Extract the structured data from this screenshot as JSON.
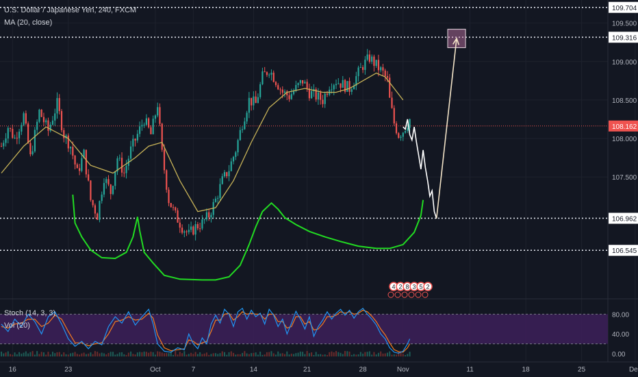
{
  "header": {
    "symbol_line": "U.S. Dollar / Japanese Yen, 240, FXCM",
    "ma_line": "MA (20, close)"
  },
  "stoch": {
    "label": "Stoch (14, 3, 3)",
    "vol_label": "Vol (20)",
    "ticks": [
      "80.00",
      "40.00",
      "0.00"
    ],
    "upper_band": 80,
    "lower_band": 20,
    "band_color": "#3b1f57"
  },
  "events": [
    "4",
    "2",
    "8",
    "3",
    "5",
    "2"
  ],
  "chart_data": {
    "type": "line",
    "ylim": [
      105.95,
      109.8
    ],
    "y_ticks": [
      {
        "label": "109.704",
        "value": 109.704,
        "style": "highlight"
      },
      {
        "label": "109.500",
        "value": 109.5
      },
      {
        "label": "109.316",
        "value": 109.316,
        "style": "highlight"
      },
      {
        "label": "109.000",
        "value": 109.0
      },
      {
        "label": "108.500",
        "value": 108.5
      },
      {
        "label": "108.162",
        "value": 108.162,
        "style": "price"
      },
      {
        "label": "108.000",
        "value": 108.0
      },
      {
        "label": "107.500",
        "value": 107.5
      },
      {
        "label": "106.962",
        "value": 106.962,
        "style": "highlight"
      },
      {
        "label": "106.545",
        "value": 106.545,
        "style": "highlight"
      }
    ],
    "x_ticks": [
      {
        "label": "16",
        "bar": 5
      },
      {
        "label": "23",
        "bar": 30
      },
      {
        "label": "Oct",
        "bar": 69
      },
      {
        "label": "7",
        "bar": 86
      },
      {
        "label": "14",
        "bar": 113
      },
      {
        "label": "21",
        "bar": 137
      },
      {
        "label": "28",
        "bar": 162
      },
      {
        "label": "Nov",
        "bar": 180
      },
      {
        "label": "11",
        "bar": 210
      },
      {
        "label": "18",
        "bar": 235
      },
      {
        "label": "25",
        "bar": 260
      },
      {
        "label": "Dec",
        "bar": 284
      }
    ],
    "levels": [
      109.704,
      109.316,
      106.962,
      106.545
    ],
    "current_price": 108.162,
    "price_path": [
      [
        0,
        107.9
      ],
      [
        3,
        108.15
      ],
      [
        6,
        108.0
      ],
      [
        10,
        108.3
      ],
      [
        13,
        107.75
      ],
      [
        17,
        108.35
      ],
      [
        21,
        108.1
      ],
      [
        25,
        108.45
      ],
      [
        28,
        108.05
      ],
      [
        31,
        107.9
      ],
      [
        34,
        107.55
      ],
      [
        37,
        107.8
      ],
      [
        40,
        107.2
      ],
      [
        43,
        107.0
      ],
      [
        46,
        107.5
      ],
      [
        49,
        107.3
      ],
      [
        52,
        107.75
      ],
      [
        55,
        107.55
      ],
      [
        58,
        107.85
      ],
      [
        61,
        108.05
      ],
      [
        64,
        108.25
      ],
      [
        67,
        108.05
      ],
      [
        70,
        108.45
      ],
      [
        72,
        107.8
      ],
      [
        75,
        107.2
      ],
      [
        78,
        107.0
      ],
      [
        81,
        106.85
      ],
      [
        84,
        106.75
      ],
      [
        87,
        106.85
      ],
      [
        90,
        106.9
      ],
      [
        93,
        107.0
      ],
      [
        96,
        107.2
      ],
      [
        99,
        107.45
      ],
      [
        102,
        107.6
      ],
      [
        105,
        107.85
      ],
      [
        108,
        108.2
      ],
      [
        111,
        108.5
      ],
      [
        114,
        108.45
      ],
      [
        117,
        108.8
      ],
      [
        120,
        108.9
      ],
      [
        123,
        108.75
      ],
      [
        126,
        108.6
      ],
      [
        129,
        108.55
      ],
      [
        132,
        108.65
      ],
      [
        135,
        108.75
      ],
      [
        138,
        108.6
      ],
      [
        141,
        108.55
      ],
      [
        144,
        108.5
      ],
      [
        147,
        108.7
      ],
      [
        150,
        108.75
      ],
      [
        153,
        108.7
      ],
      [
        156,
        108.65
      ],
      [
        159,
        108.8
      ],
      [
        162,
        108.95
      ],
      [
        165,
        109.05
      ],
      [
        168,
        108.95
      ],
      [
        171,
        108.85
      ],
      [
        173,
        108.75
      ],
      [
        174,
        108.5
      ],
      [
        176,
        108.2
      ],
      [
        178,
        108.05
      ],
      [
        180,
        108.1
      ],
      [
        183,
        108.25
      ]
    ],
    "ma20": [
      [
        0,
        107.55
      ],
      [
        10,
        107.9
      ],
      [
        20,
        108.15
      ],
      [
        30,
        108.0
      ],
      [
        40,
        107.65
      ],
      [
        50,
        107.55
      ],
      [
        60,
        107.75
      ],
      [
        66,
        107.9
      ],
      [
        72,
        107.95
      ],
      [
        80,
        107.45
      ],
      [
        88,
        107.05
      ],
      [
        96,
        107.1
      ],
      [
        104,
        107.45
      ],
      [
        112,
        107.95
      ],
      [
        120,
        108.4
      ],
      [
        128,
        108.6
      ],
      [
        136,
        108.65
      ],
      [
        144,
        108.6
      ],
      [
        150,
        108.6
      ],
      [
        156,
        108.65
      ],
      [
        162,
        108.75
      ],
      [
        168,
        108.85
      ],
      [
        172,
        108.8
      ],
      [
        176,
        108.65
      ],
      [
        180,
        108.5
      ]
    ],
    "projection": [
      [
        180,
        108.15
      ],
      [
        181,
        108.12
      ],
      [
        182,
        108.25
      ],
      [
        183,
        108.05
      ],
      [
        184,
        107.98
      ],
      [
        185,
        108.15
      ],
      [
        186,
        107.95
      ],
      [
        187,
        107.78
      ],
      [
        188,
        107.6
      ],
      [
        189,
        107.85
      ],
      [
        190,
        107.62
      ],
      [
        191,
        107.45
      ],
      [
        192,
        107.25
      ],
      [
        193,
        107.32
      ],
      [
        194,
        107.05
      ],
      [
        195,
        106.96
      ]
    ],
    "target_arrow": {
      "from": [
        195,
        106.96
      ],
      "to": [
        204,
        109.3
      ]
    },
    "target_box": {
      "x0": 200,
      "x1": 208,
      "y0": 109.42,
      "y1": 109.18
    },
    "pattern_curve": [
      [
        32,
        107.27
      ],
      [
        33,
        106.9
      ],
      [
        36,
        106.72
      ],
      [
        40,
        106.55
      ],
      [
        45,
        106.45
      ],
      [
        51,
        106.44
      ],
      [
        56,
        106.52
      ],
      [
        59,
        106.72
      ],
      [
        61,
        106.98
      ],
      [
        62,
        106.8
      ],
      [
        64,
        106.52
      ],
      [
        68,
        106.38
      ],
      [
        73,
        106.22
      ],
      [
        80,
        106.17
      ],
      [
        90,
        106.16
      ],
      [
        96,
        106.16
      ],
      [
        102,
        106.2
      ],
      [
        107,
        106.35
      ],
      [
        111,
        106.62
      ],
      [
        114,
        106.85
      ],
      [
        117,
        107.05
      ],
      [
        121,
        107.16
      ],
      [
        124,
        107.08
      ],
      [
        127,
        106.97
      ],
      [
        132,
        106.88
      ],
      [
        138,
        106.79
      ],
      [
        145,
        106.72
      ],
      [
        152,
        106.66
      ],
      [
        160,
        106.6
      ],
      [
        168,
        106.57
      ],
      [
        174,
        106.57
      ],
      [
        180,
        106.62
      ],
      [
        185,
        106.78
      ],
      [
        188,
        107.0
      ],
      [
        189,
        107.2
      ]
    ],
    "stoch_k": [
      [
        0,
        60
      ],
      [
        3,
        45
      ],
      [
        6,
        70
      ],
      [
        9,
        55
      ],
      [
        12,
        80
      ],
      [
        15,
        65
      ],
      [
        18,
        40
      ],
      [
        21,
        75
      ],
      [
        24,
        85
      ],
      [
        27,
        60
      ],
      [
        30,
        30
      ],
      [
        33,
        15
      ],
      [
        36,
        25
      ],
      [
        39,
        10
      ],
      [
        42,
        25
      ],
      [
        45,
        18
      ],
      [
        48,
        55
      ],
      [
        51,
        75
      ],
      [
        54,
        62
      ],
      [
        57,
        85
      ],
      [
        60,
        58
      ],
      [
        63,
        75
      ],
      [
        66,
        90
      ],
      [
        68,
        60
      ],
      [
        70,
        20
      ],
      [
        73,
        5
      ],
      [
        76,
        3
      ],
      [
        79,
        12
      ],
      [
        82,
        8
      ],
      [
        84,
        40
      ],
      [
        86,
        20
      ],
      [
        88,
        10
      ],
      [
        90,
        32
      ],
      [
        92,
        20
      ],
      [
        94,
        60
      ],
      [
        96,
        78
      ],
      [
        98,
        62
      ],
      [
        100,
        90
      ],
      [
        102,
        80
      ],
      [
        104,
        55
      ],
      [
        106,
        85
      ],
      [
        108,
        92
      ],
      [
        110,
        70
      ],
      [
        112,
        88
      ],
      [
        114,
        75
      ],
      [
        116,
        82
      ],
      [
        118,
        60
      ],
      [
        120,
        90
      ],
      [
        122,
        78
      ],
      [
        124,
        55
      ],
      [
        126,
        70
      ],
      [
        128,
        40
      ],
      [
        130,
        62
      ],
      [
        132,
        86
      ],
      [
        134,
        70
      ],
      [
        136,
        50
      ],
      [
        138,
        75
      ],
      [
        140,
        35
      ],
      [
        142,
        55
      ],
      [
        144,
        68
      ],
      [
        146,
        85
      ],
      [
        148,
        70
      ],
      [
        150,
        82
      ],
      [
        152,
        90
      ],
      [
        154,
        78
      ],
      [
        156,
        88
      ],
      [
        158,
        72
      ],
      [
        160,
        85
      ],
      [
        162,
        92
      ],
      [
        164,
        80
      ],
      [
        166,
        70
      ],
      [
        168,
        58
      ],
      [
        170,
        40
      ],
      [
        172,
        30
      ],
      [
        174,
        12
      ],
      [
        176,
        3
      ],
      [
        178,
        1
      ],
      [
        180,
        5
      ],
      [
        182,
        20
      ],
      [
        183,
        30
      ]
    ],
    "stoch_d": [
      [
        0,
        55
      ],
      [
        3,
        52
      ],
      [
        6,
        60
      ],
      [
        9,
        62
      ],
      [
        12,
        70
      ],
      [
        15,
        70
      ],
      [
        18,
        55
      ],
      [
        21,
        62
      ],
      [
        24,
        78
      ],
      [
        27,
        70
      ],
      [
        30,
        45
      ],
      [
        33,
        22
      ],
      [
        36,
        22
      ],
      [
        39,
        16
      ],
      [
        42,
        20
      ],
      [
        45,
        22
      ],
      [
        48,
        40
      ],
      [
        51,
        65
      ],
      [
        54,
        68
      ],
      [
        57,
        75
      ],
      [
        60,
        68
      ],
      [
        63,
        70
      ],
      [
        66,
        82
      ],
      [
        68,
        72
      ],
      [
        70,
        38
      ],
      [
        73,
        12
      ],
      [
        76,
        6
      ],
      [
        79,
        8
      ],
      [
        82,
        10
      ],
      [
        84,
        28
      ],
      [
        86,
        25
      ],
      [
        88,
        18
      ],
      [
        90,
        22
      ],
      [
        92,
        25
      ],
      [
        94,
        45
      ],
      [
        96,
        68
      ],
      [
        98,
        68
      ],
      [
        100,
        80
      ],
      [
        102,
        82
      ],
      [
        104,
        68
      ],
      [
        106,
        75
      ],
      [
        108,
        85
      ],
      [
        110,
        80
      ],
      [
        112,
        82
      ],
      [
        114,
        80
      ],
      [
        116,
        80
      ],
      [
        118,
        70
      ],
      [
        120,
        80
      ],
      [
        122,
        80
      ],
      [
        124,
        65
      ],
      [
        126,
        65
      ],
      [
        128,
        52
      ],
      [
        130,
        55
      ],
      [
        132,
        75
      ],
      [
        134,
        75
      ],
      [
        136,
        60
      ],
      [
        138,
        65
      ],
      [
        140,
        48
      ],
      [
        142,
        50
      ],
      [
        144,
        60
      ],
      [
        146,
        75
      ],
      [
        148,
        75
      ],
      [
        150,
        78
      ],
      [
        152,
        85
      ],
      [
        154,
        82
      ],
      [
        156,
        85
      ],
      [
        158,
        80
      ],
      [
        160,
        82
      ],
      [
        162,
        88
      ],
      [
        164,
        85
      ],
      [
        166,
        76
      ],
      [
        168,
        65
      ],
      [
        170,
        50
      ],
      [
        172,
        38
      ],
      [
        174,
        22
      ],
      [
        176,
        8
      ],
      [
        178,
        4
      ],
      [
        180,
        3
      ],
      [
        182,
        12
      ],
      [
        183,
        20
      ]
    ]
  }
}
